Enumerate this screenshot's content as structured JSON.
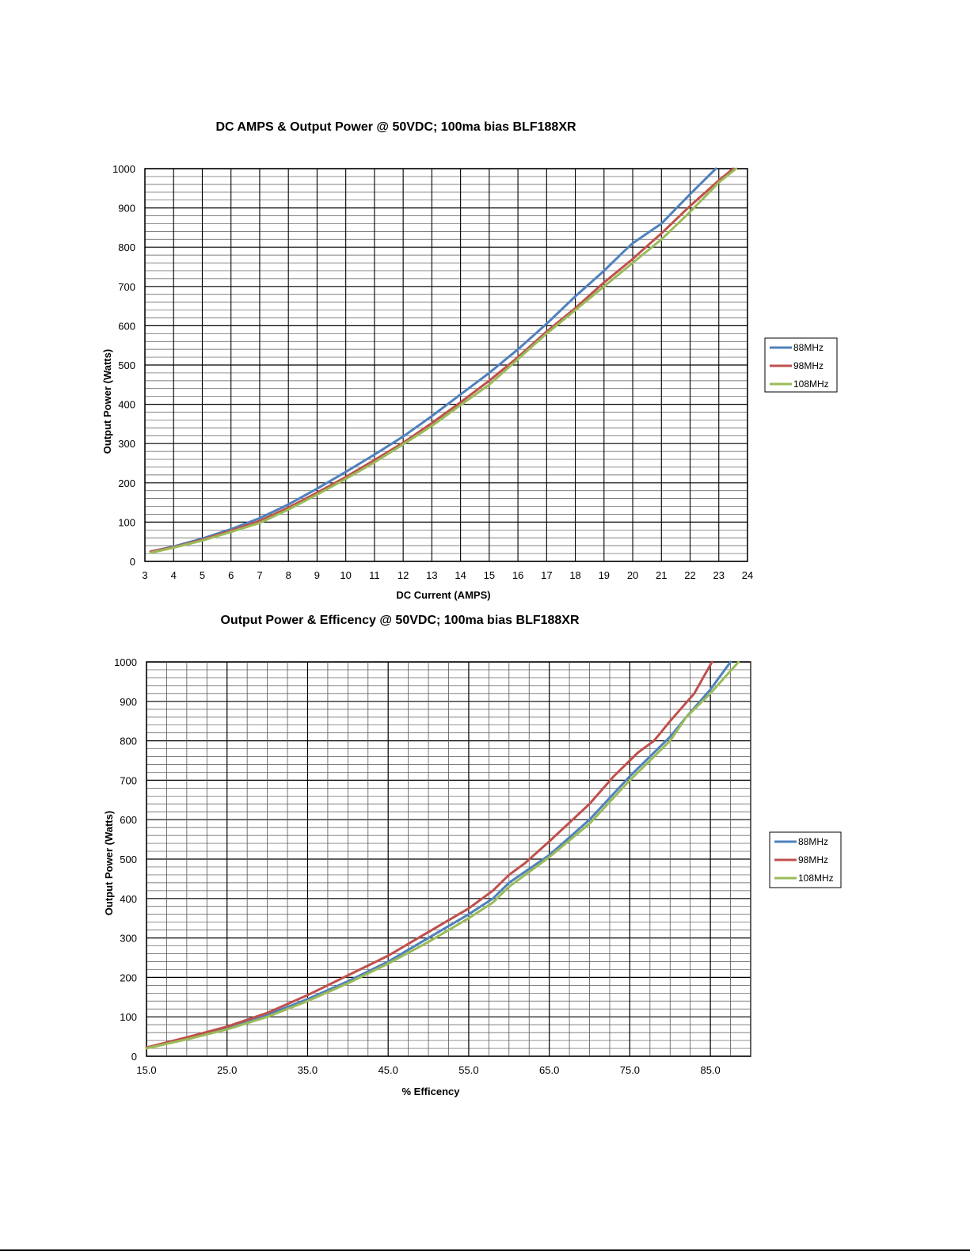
{
  "colors": {
    "series_88": "#4f81bd",
    "series_98": "#c0504d",
    "series_108": "#9bbb59",
    "grid_major": "#000000",
    "grid_minor": "#555555"
  },
  "chart_data": [
    {
      "type": "line",
      "title": "DC AMPS & Output Power @ 50VDC; 100ma bias BLF188XR",
      "xlabel": "DC Current (AMPS)",
      "ylabel": "Output Power (Watts)",
      "xlim": [
        3,
        24
      ],
      "ylim": [
        0,
        1000
      ],
      "x_ticks": [
        "3",
        "4",
        "5",
        "6",
        "7",
        "8",
        "9",
        "10",
        "11",
        "12",
        "13",
        "14",
        "15",
        "16",
        "17",
        "18",
        "19",
        "20",
        "21",
        "22",
        "23",
        "24"
      ],
      "y_ticks": [
        "0",
        "100",
        "200",
        "300",
        "400",
        "500",
        "600",
        "700",
        "800",
        "900",
        "1000"
      ],
      "grid": true,
      "legend": "right",
      "series": [
        {
          "name": "88MHz",
          "x": [
            3.2,
            4,
            5,
            6,
            7,
            8,
            9,
            10,
            11,
            12,
            13,
            14,
            15,
            16,
            17,
            18,
            19,
            19.7,
            20,
            21,
            22,
            22.9
          ],
          "y": [
            25,
            38,
            58,
            82,
            110,
            145,
            185,
            228,
            272,
            318,
            370,
            425,
            480,
            540,
            605,
            675,
            740,
            790,
            810,
            860,
            935,
            1000
          ]
        },
        {
          "name": "98MHz",
          "x": [
            3.2,
            4,
            5,
            6,
            7,
            8,
            9,
            10,
            11,
            12,
            13,
            14,
            15,
            16,
            17,
            18,
            19,
            20,
            20.3,
            21,
            22,
            23,
            23.5
          ],
          "y": [
            25,
            36,
            55,
            78,
            103,
            137,
            175,
            215,
            258,
            302,
            352,
            405,
            460,
            520,
            585,
            645,
            710,
            770,
            790,
            835,
            905,
            970,
            1000
          ]
        },
        {
          "name": "108MHz",
          "x": [
            3.2,
            4,
            5,
            6,
            7,
            8,
            9,
            10,
            11,
            12,
            13,
            14,
            15,
            16,
            17,
            18,
            19,
            20,
            21,
            22,
            23,
            23.6
          ],
          "y": [
            22,
            35,
            53,
            75,
            98,
            132,
            170,
            210,
            252,
            298,
            345,
            398,
            450,
            515,
            580,
            640,
            700,
            760,
            820,
            890,
            965,
            1000
          ]
        }
      ]
    },
    {
      "type": "line",
      "title": "Output Power  & Efficency @ 50VDC; 100ma bias BLF188XR",
      "xlabel": "% Efficency",
      "ylabel": "Output Power (Watts)",
      "xlim": [
        15,
        90
      ],
      "ylim": [
        0,
        1000
      ],
      "x_ticks": [
        "15.0",
        "25.0",
        "35.0",
        "45.0",
        "55.0",
        "65.0",
        "75.0",
        "85.0"
      ],
      "y_ticks": [
        "0",
        "100",
        "200",
        "300",
        "400",
        "500",
        "600",
        "700",
        "800",
        "900",
        "1000"
      ],
      "grid": true,
      "legend": "right",
      "series": [
        {
          "name": "88MHz",
          "x": [
            15,
            20,
            25,
            30,
            35,
            40,
            45,
            50,
            55,
            58,
            60,
            65,
            70,
            75,
            78,
            80,
            82,
            85,
            87.5
          ],
          "y": [
            22,
            45,
            70,
            105,
            145,
            190,
            240,
            300,
            360,
            400,
            440,
            510,
            600,
            710,
            770,
            810,
            860,
            930,
            1000
          ]
        },
        {
          "name": "98MHz",
          "x": [
            15,
            20,
            25,
            30,
            35,
            40,
            45,
            50,
            55,
            58,
            60,
            62,
            65,
            70,
            73,
            76,
            78,
            80,
            83,
            85.2
          ],
          "y": [
            22,
            48,
            75,
            110,
            155,
            205,
            255,
            315,
            375,
            420,
            460,
            490,
            545,
            640,
            710,
            770,
            800,
            850,
            920,
            1000
          ]
        },
        {
          "name": "108MHz",
          "x": [
            15,
            20,
            25,
            30,
            35,
            40,
            45,
            50,
            55,
            58,
            60,
            65,
            70,
            75,
            78,
            80,
            82,
            85,
            88.5
          ],
          "y": [
            20,
            43,
            68,
            100,
            140,
            185,
            235,
            290,
            350,
            390,
            430,
            505,
            590,
            700,
            760,
            800,
            860,
            920,
            1000
          ]
        }
      ]
    }
  ]
}
